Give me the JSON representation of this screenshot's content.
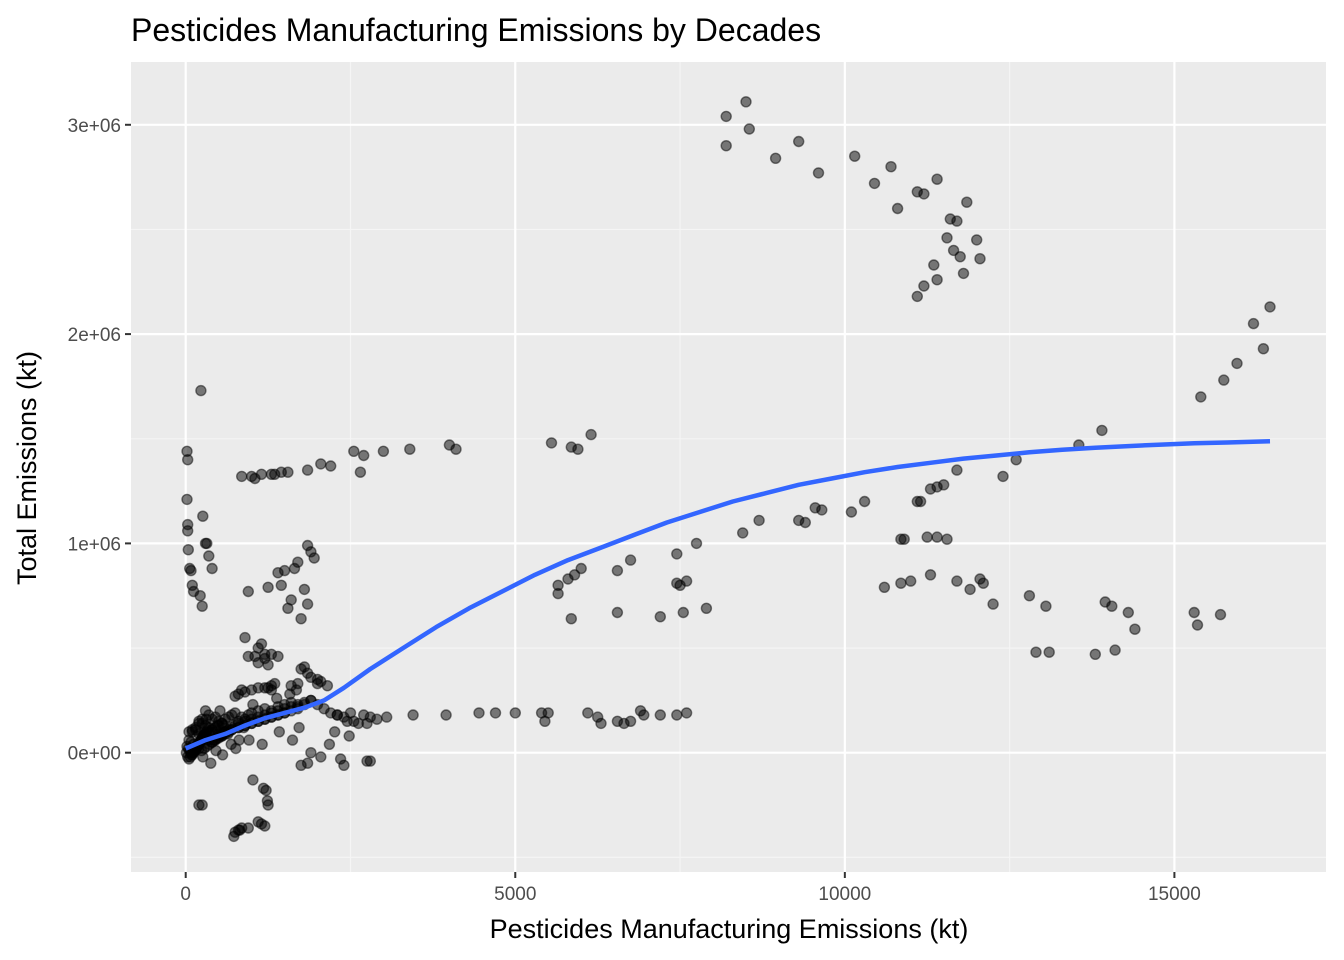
{
  "chart_data": {
    "type": "scatter",
    "title": "Pesticides Manufacturing Emissions by Decades",
    "xlabel": "Pesticides Manufacturing Emissions (kt)",
    "ylabel": "Total Emissions (kt)",
    "xlim": [
      -830,
      17300
    ],
    "ylim": [
      -570000,
      3300000
    ],
    "x_ticks": [
      0,
      5000,
      10000,
      15000
    ],
    "x_tick_labels": [
      "0",
      "5000",
      "10000",
      "15000"
    ],
    "y_ticks": [
      0,
      1000000,
      2000000,
      3000000
    ],
    "y_tick_labels": [
      "0e+00",
      "1e+06",
      "2e+06",
      "3e+06"
    ],
    "grid": true,
    "legend": "none",
    "colors": {
      "panel_background": "#ebebeb",
      "grid_major": "#ffffff",
      "grid_minor": "#f5f5f5",
      "points": "#000000",
      "smooth_line": "#3366ff"
    },
    "series": [
      {
        "kind": "points",
        "opacity": 0.5,
        "x": [
          8200,
          8500,
          8550,
          8200,
          9300,
          8950,
          9600,
          10150,
          10450,
          10700,
          10800,
          11100,
          11200,
          11400,
          11600,
          11700,
          11850,
          11550,
          11650,
          11750,
          12000,
          12050,
          11350,
          11400,
          11800,
          11200,
          11100,
          16450,
          16200,
          16350,
          15950,
          15750,
          15400,
          13900,
          13550,
          5550,
          5850,
          5950,
          6150,
          4000,
          4100,
          3400,
          3000,
          2700,
          2550,
          2650,
          2050,
          2200,
          1850,
          1550,
          1450,
          1350,
          1300,
          1150,
          1000,
          1050,
          850,
          230,
          20,
          30,
          20,
          30,
          30,
          40,
          60,
          80,
          100,
          120,
          260,
          300,
          350,
          400,
          220,
          250,
          320,
          8450,
          8700,
          9300,
          9400,
          9550,
          9650,
          10100,
          10300,
          10850,
          11100,
          11150,
          11300,
          11400,
          11500,
          11700,
          12400,
          12600,
          10900,
          11250,
          11400,
          11550,
          10600,
          10850,
          11000,
          11300,
          11700,
          11900,
          12050,
          12100,
          12250,
          12800,
          13050,
          13950,
          14050,
          14300,
          14400,
          15300,
          15700,
          15350,
          12900,
          13100,
          13800,
          14100,
          5650,
          5800,
          5900,
          6000,
          5650,
          5850,
          6550,
          6750,
          7450,
          7600,
          7500,
          7750,
          6550,
          7200,
          7450,
          7550,
          7900,
          5400,
          5450,
          5500,
          6100,
          6300,
          6550,
          6750,
          6900,
          6950,
          7200,
          7450,
          7600,
          6250,
          6650,
          4450,
          4700,
          5000,
          3950,
          3450,
          3050,
          2800,
          2700,
          2500,
          2300,
          2450,
          2550,
          2750,
          2900,
          1850,
          1900,
          1950,
          1700,
          1650,
          1500,
          1800,
          1850,
          1550,
          1600,
          1450,
          1750,
          1400,
          1250,
          1150,
          1100,
          900,
          950,
          1200,
          1300,
          1400,
          1200,
          1100,
          1050,
          950,
          1250,
          1000,
          1100,
          1200,
          1250,
          1300,
          900,
          850,
          800,
          750,
          1300,
          1350,
          1750,
          1800,
          1900,
          2000,
          1700,
          1600,
          1850,
          2050,
          2150,
          2000,
          300,
          350,
          250,
          200,
          150,
          100,
          50,
          400,
          450,
          500,
          550,
          600,
          650,
          700,
          750,
          800,
          850,
          900,
          950,
          1000,
          1100,
          1200,
          1300,
          1400,
          1500,
          1600,
          1700,
          1800,
          1900,
          2000,
          2100,
          2200,
          2300,
          2400,
          200,
          250,
          300,
          350,
          400,
          450,
          500,
          550,
          600,
          650,
          700,
          750,
          800,
          900,
          1000,
          1100,
          1200,
          1300,
          1400,
          1500,
          1600,
          1700,
          1800,
          1900,
          100,
          150,
          200,
          250,
          300,
          350,
          400,
          450,
          500,
          550,
          600,
          650,
          700,
          800,
          900,
          1000,
          1100,
          1200,
          1300,
          1400,
          1500,
          50,
          80,
          120,
          160,
          200,
          240,
          280,
          320,
          360,
          400,
          440,
          480,
          520,
          560,
          600,
          700,
          800,
          900,
          1000,
          1100,
          1200,
          1300,
          1400,
          1500,
          1600,
          1700,
          20,
          40,
          60,
          80,
          100,
          120,
          140,
          160,
          180,
          200,
          220,
          240,
          260,
          280,
          300,
          350,
          400,
          450,
          500,
          550,
          10,
          30,
          50,
          70,
          90,
          110,
          130,
          150,
          170,
          190,
          210,
          230,
          250,
          270,
          290,
          310,
          330,
          1750,
          1850,
          1900,
          2050,
          2350,
          2400,
          2750,
          2800,
          200,
          250,
          750,
          800,
          850,
          1100,
          1150,
          1200,
          1250
        ],
        "y": [
          3040000,
          3110000,
          2980000,
          2900000,
          2920000,
          2840000,
          2770000,
          2850000,
          2720000,
          2800000,
          2600000,
          2680000,
          2670000,
          2740000,
          2550000,
          2540000,
          2630000,
          2460000,
          2400000,
          2370000,
          2450000,
          2360000,
          2330000,
          2260000,
          2290000,
          2230000,
          2180000,
          2130000,
          2050000,
          1930000,
          1860000,
          1780000,
          1700000,
          1540000,
          1470000,
          1480000,
          1460000,
          1450000,
          1520000,
          1470000,
          1450000,
          1450000,
          1440000,
          1420000,
          1440000,
          1340000,
          1380000,
          1370000,
          1350000,
          1340000,
          1340000,
          1330000,
          1330000,
          1330000,
          1320000,
          1310000,
          1320000,
          1730000,
          1440000,
          1400000,
          1210000,
          1090000,
          1060000,
          970000,
          880000,
          870000,
          800000,
          770000,
          1130000,
          1000000,
          940000,
          880000,
          750000,
          700000,
          1000000,
          1050000,
          1110000,
          1110000,
          1100000,
          1170000,
          1160000,
          1150000,
          1200000,
          1020000,
          1200000,
          1200000,
          1260000,
          1270000,
          1280000,
          1350000,
          1320000,
          1400000,
          1020000,
          1030000,
          1030000,
          1020000,
          790000,
          810000,
          820000,
          850000,
          820000,
          780000,
          830000,
          810000,
          710000,
          750000,
          700000,
          720000,
          700000,
          670000,
          590000,
          670000,
          660000,
          610000,
          480000,
          480000,
          470000,
          490000,
          800000,
          830000,
          850000,
          880000,
          760000,
          640000,
          870000,
          920000,
          950000,
          820000,
          800000,
          1000000,
          670000,
          650000,
          810000,
          670000,
          690000,
          190000,
          150000,
          190000,
          190000,
          140000,
          150000,
          150000,
          200000,
          180000,
          180000,
          180000,
          190000,
          170000,
          140000,
          190000,
          190000,
          190000,
          180000,
          180000,
          170000,
          170000,
          180000,
          190000,
          180000,
          150000,
          150000,
          140000,
          160000,
          990000,
          960000,
          930000,
          910000,
          880000,
          870000,
          780000,
          710000,
          690000,
          730000,
          800000,
          640000,
          860000,
          790000,
          520000,
          500000,
          550000,
          770000,
          470000,
          470000,
          460000,
          450000,
          430000,
          460000,
          460000,
          420000,
          300000,
          310000,
          310000,
          310000,
          300000,
          290000,
          300000,
          280000,
          270000,
          320000,
          330000,
          400000,
          410000,
          360000,
          350000,
          330000,
          320000,
          380000,
          340000,
          320000,
          330000,
          200000,
          180000,
          160000,
          140000,
          120000,
          110000,
          100000,
          160000,
          170000,
          150000,
          140000,
          160000,
          170000,
          180000,
          190000,
          150000,
          170000,
          160000,
          180000,
          190000,
          200000,
          210000,
          200000,
          220000,
          230000,
          240000,
          220000,
          230000,
          250000,
          230000,
          210000,
          190000,
          180000,
          170000,
          150000,
          140000,
          130000,
          120000,
          110000,
          100000,
          90000,
          80000,
          100000,
          110000,
          120000,
          130000,
          140000,
          150000,
          160000,
          170000,
          180000,
          190000,
          200000,
          210000,
          220000,
          230000,
          240000,
          250000,
          100000,
          110000,
          90000,
          80000,
          70000,
          60000,
          50000,
          60000,
          70000,
          80000,
          90000,
          100000,
          110000,
          120000,
          130000,
          140000,
          150000,
          160000,
          170000,
          180000,
          190000,
          60000,
          50000,
          40000,
          30000,
          20000,
          10000,
          20000,
          30000,
          40000,
          50000,
          60000,
          70000,
          80000,
          90000,
          100000,
          110000,
          120000,
          130000,
          140000,
          150000,
          160000,
          170000,
          180000,
          190000,
          200000,
          210000,
          30000,
          20000,
          10000,
          0,
          -10000,
          0,
          10000,
          20000,
          30000,
          40000,
          50000,
          60000,
          70000,
          80000,
          90000,
          100000,
          110000,
          120000,
          130000,
          140000,
          0,
          -20000,
          -30000,
          -20000,
          -10000,
          0,
          10000,
          20000,
          30000,
          40000,
          50000,
          60000,
          70000,
          80000,
          90000,
          100000,
          110000,
          -60000,
          -50000,
          0,
          -20000,
          -30000,
          -60000,
          -40000,
          -40000,
          -250000,
          -250000,
          -380000,
          -370000,
          -360000,
          -330000,
          -340000,
          -350000,
          -250000
        ],
        "extra_points": [
          [
            1180,
            -170000
          ],
          [
            1240,
            -230000
          ],
          [
            1220,
            -180000
          ],
          [
            950,
            -360000
          ],
          [
            730,
            -400000
          ],
          [
            820,
            -370000
          ],
          [
            1020,
            -130000
          ],
          [
            260,
            -20000
          ],
          [
            380,
            -50000
          ],
          [
            310,
            160000
          ],
          [
            570,
            130000
          ],
          [
            640,
            90000
          ],
          [
            690,
            40000
          ],
          [
            810,
            60000
          ],
          [
            880,
            120000
          ],
          [
            1420,
            100000
          ],
          [
            1620,
            60000
          ],
          [
            1720,
            120000
          ],
          [
            2180,
            40000
          ],
          [
            2480,
            80000
          ],
          [
            2620,
            140000
          ],
          [
            2260,
            100000
          ],
          [
            1160,
            40000
          ],
          [
            960,
            60000
          ],
          [
            760,
            20000
          ],
          [
            560,
            -10000
          ],
          [
            460,
            10000
          ],
          [
            420,
            60000
          ],
          [
            480,
            130000
          ],
          [
            520,
            200000
          ],
          [
            1020,
            230000
          ],
          [
            1380,
            260000
          ],
          [
            1580,
            280000
          ],
          [
            1680,
            300000
          ]
        ]
      },
      {
        "kind": "smooth",
        "x": [
          0,
          300,
          600,
          900,
          1200,
          1500,
          1800,
          2100,
          2400,
          2800,
          3300,
          3800,
          4300,
          4800,
          5300,
          5800,
          6300,
          6800,
          7300,
          7800,
          8300,
          8800,
          9300,
          9800,
          10300,
          10800,
          11300,
          11800,
          12300,
          12800,
          13300,
          13800,
          14300,
          14800,
          15300,
          15800,
          16450
        ],
        "y": [
          20000,
          60000,
          90000,
          130000,
          165000,
          190000,
          215000,
          250000,
          310000,
          400000,
          500000,
          600000,
          690000,
          770000,
          850000,
          920000,
          980000,
          1040000,
          1100000,
          1150000,
          1200000,
          1240000,
          1280000,
          1310000,
          1340000,
          1365000,
          1385000,
          1405000,
          1420000,
          1435000,
          1447000,
          1457000,
          1465000,
          1472000,
          1478000,
          1482000,
          1488000
        ]
      }
    ]
  }
}
